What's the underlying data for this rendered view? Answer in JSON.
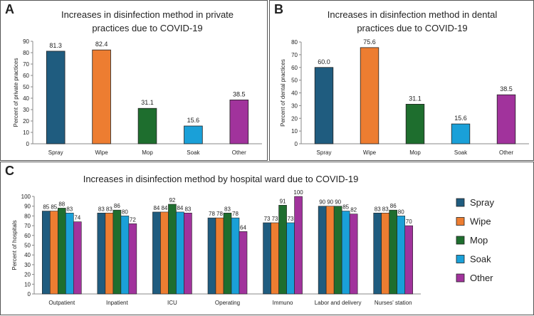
{
  "panels": {
    "a": {
      "label": "A"
    },
    "b": {
      "label": "B"
    },
    "c": {
      "label": "C"
    }
  },
  "colors": {
    "Spray": "#1f5c7f",
    "Wipe": "#ed7d31",
    "Mop": "#1e6e2e",
    "Soak": "#1aa0d8",
    "Other": "#a1339c"
  },
  "chart_data": [
    {
      "id": "a",
      "type": "bar",
      "title_lines": [
        "Increases in disinfection method in private",
        "practices due to COVID-19"
      ],
      "xlabel": "",
      "ylabel": "Percent of private practices",
      "categories": [
        "Spray",
        "Wipe",
        "Mop",
        "Soak",
        "Other"
      ],
      "values": [
        81.3,
        82.4,
        31.1,
        15.6,
        38.5
      ],
      "value_labels": [
        "81.3",
        "82.4",
        "31.1",
        "15.6",
        "38.5"
      ],
      "ylim": [
        0,
        90
      ],
      "yticks": [
        0,
        10,
        20,
        30,
        40,
        50,
        60,
        70,
        80,
        90
      ]
    },
    {
      "id": "b",
      "type": "bar",
      "title_lines": [
        "Increases in disinfection method in dental",
        "practices due to COVID-19"
      ],
      "xlabel": "",
      "ylabel": "Percent of dental practices",
      "categories": [
        "Spray",
        "Wipe",
        "Mop",
        "Soak",
        "Other"
      ],
      "values": [
        60.0,
        75.6,
        31.1,
        15.6,
        38.5
      ],
      "value_labels": [
        "60.0",
        "75.6",
        "31.1",
        "15.6",
        "38.5"
      ],
      "ylim": [
        0,
        80
      ],
      "yticks": [
        0,
        10,
        20,
        30,
        40,
        50,
        60,
        70,
        80
      ]
    },
    {
      "id": "c",
      "type": "bar",
      "title_lines": [
        "Increases in disinfection method by hospital ward due to COVID-19"
      ],
      "xlabel": "",
      "ylabel": "Percent of hospitals",
      "categories": [
        "Outpatient",
        "Inpatient",
        "ICU",
        "Operating",
        "Immuno",
        "Labor and delivery",
        "Nurses' station"
      ],
      "series": [
        {
          "name": "Spray",
          "values": [
            85,
            83,
            84,
            78,
            73,
            90,
            83
          ]
        },
        {
          "name": "Wipe",
          "values": [
            85,
            83,
            84,
            78,
            73,
            90,
            83
          ]
        },
        {
          "name": "Mop",
          "values": [
            88,
            86,
            92,
            83,
            91,
            90,
            86
          ]
        },
        {
          "name": "Soak",
          "values": [
            83,
            80,
            84,
            78,
            73,
            85,
            80
          ]
        },
        {
          "name": "Other",
          "values": [
            74,
            72,
            83,
            64,
            100,
            82,
            70
          ]
        }
      ],
      "ylim": [
        0,
        100
      ],
      "yticks": [
        0,
        10,
        20,
        30,
        40,
        50,
        60,
        70,
        80,
        90,
        100
      ],
      "legend": [
        "Spray",
        "Wipe",
        "Mop",
        "Soak",
        "Other"
      ],
      "legend_position": "right"
    }
  ]
}
